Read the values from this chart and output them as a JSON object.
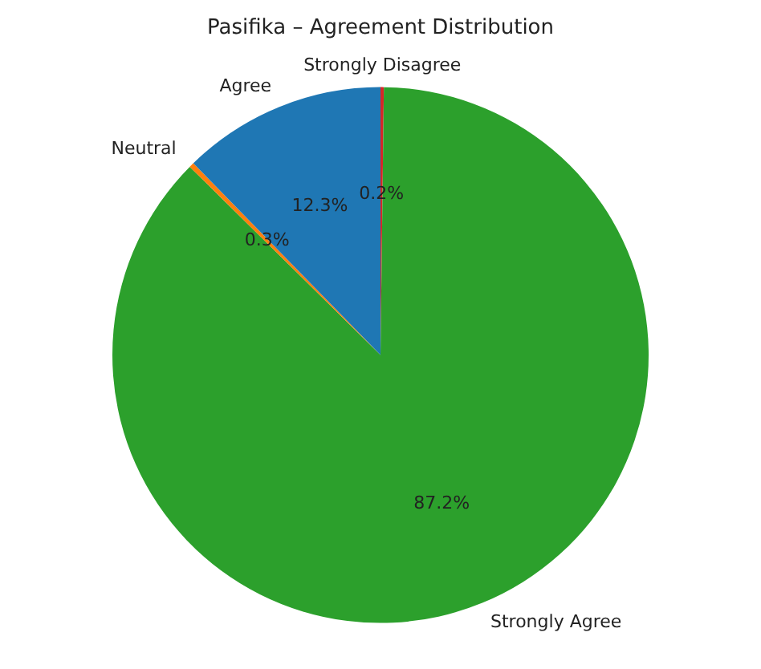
{
  "chart_data": {
    "type": "pie",
    "title": "Pasifika – Agreement Distribution",
    "categories": [
      "Strongly Disagree",
      "Strongly Agree",
      "Neutral",
      "Agree"
    ],
    "values": [
      0.2,
      87.2,
      0.3,
      12.3
    ],
    "colors": [
      "#d62728",
      "#2ca02c",
      "#ff7f0e",
      "#1f77b4"
    ],
    "value_labels": [
      "0.2%",
      "87.2%",
      "0.3%",
      "12.3%"
    ],
    "legend": false
  }
}
